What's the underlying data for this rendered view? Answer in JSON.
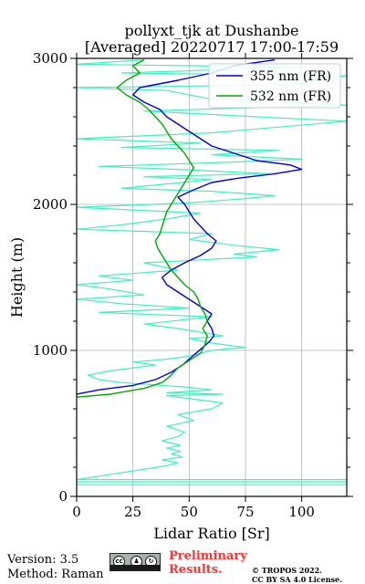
{
  "chart_data": {
    "type": "line",
    "title": "pollyxt_tjk at Dushanbe",
    "subtitle": "[Averaged] 20220717 17:00-17:59",
    "xlabel": "Lidar Ratio [Sr]",
    "ylabel": "Height (m)",
    "xlim": [
      0,
      120
    ],
    "ylim": [
      0,
      3000
    ],
    "xticks": [
      0,
      25,
      50,
      75,
      100
    ],
    "yticks": [
      0,
      1000,
      2000,
      3000
    ],
    "grid": true,
    "legend_position": "top-right",
    "series": [
      {
        "name": "",
        "color": "#40f0c0",
        "points": [
          [
            120,
            80
          ],
          [
            0,
            80
          ],
          [
            0,
            100
          ],
          [
            120,
            100
          ],
          [
            120,
            115
          ],
          [
            0,
            115
          ],
          [
            40,
            210
          ],
          [
            45,
            230
          ],
          [
            38,
            250
          ],
          [
            47,
            270
          ],
          [
            42,
            290
          ],
          [
            46,
            310
          ],
          [
            40,
            330
          ],
          [
            46,
            350
          ],
          [
            38,
            380
          ],
          [
            45,
            410
          ],
          [
            48,
            440
          ],
          [
            40,
            480
          ],
          [
            52,
            520
          ],
          [
            45,
            560
          ],
          [
            60,
            600
          ],
          [
            65,
            640
          ],
          [
            55,
            660
          ],
          [
            40,
            690
          ],
          [
            65,
            700
          ],
          [
            40,
            710
          ],
          [
            60,
            730
          ],
          [
            48,
            750
          ],
          [
            38,
            760
          ],
          [
            20,
            780
          ],
          [
            10,
            800
          ],
          [
            5,
            830
          ],
          [
            15,
            860
          ],
          [
            35,
            900
          ],
          [
            25,
            920
          ],
          [
            40,
            940
          ],
          [
            50,
            960
          ],
          [
            60,
            1000
          ],
          [
            75,
            1020
          ],
          [
            60,
            1050
          ],
          [
            50,
            1080
          ],
          [
            65,
            1100
          ],
          [
            45,
            1150
          ],
          [
            30,
            1180
          ],
          [
            60,
            1230
          ],
          [
            10,
            1260
          ],
          [
            50,
            1290
          ],
          [
            20,
            1320
          ],
          [
            0,
            1350
          ],
          [
            30,
            1380
          ],
          [
            15,
            1420
          ],
          [
            0,
            1450
          ],
          [
            25,
            1480
          ],
          [
            10,
            1510
          ],
          [
            45,
            1550
          ],
          [
            30,
            1600
          ],
          [
            55,
            1620
          ],
          [
            80,
            1640
          ],
          [
            70,
            1660
          ],
          [
            90,
            1690
          ],
          [
            70,
            1720
          ],
          [
            50,
            1760
          ],
          [
            60,
            1800
          ],
          [
            0,
            1830
          ],
          [
            20,
            1860
          ],
          [
            40,
            1900
          ],
          [
            55,
            1940
          ],
          [
            0,
            1980
          ],
          [
            50,
            2010
          ],
          [
            75,
            2040
          ],
          [
            88,
            2060
          ],
          [
            60,
            2090
          ],
          [
            20,
            2110
          ],
          [
            40,
            2140
          ],
          [
            60,
            2170
          ],
          [
            30,
            2190
          ],
          [
            85,
            2210
          ],
          [
            45,
            2240
          ],
          [
            10,
            2260
          ],
          [
            70,
            2290
          ],
          [
            100,
            2310
          ],
          [
            60,
            2340
          ],
          [
            90,
            2370
          ],
          [
            20,
            2390
          ],
          [
            55,
            2420
          ],
          [
            0,
            2450
          ],
          [
            60,
            2490
          ],
          [
            120,
            2570
          ],
          [
            80,
            2600
          ],
          [
            30,
            2640
          ],
          [
            120,
            2680
          ],
          [
            60,
            2720
          ],
          [
            40,
            2780
          ],
          [
            0,
            2800
          ],
          [
            95,
            2820
          ],
          [
            120,
            2880
          ],
          [
            20,
            2900
          ],
          [
            100,
            2940
          ],
          [
            0,
            2960
          ],
          [
            30,
            2990
          ]
        ]
      },
      {
        "name": "355 nm (FR)",
        "color": "#0000dd",
        "points": [
          [
            0,
            700
          ],
          [
            10,
            730
          ],
          [
            25,
            760
          ],
          [
            35,
            800
          ],
          [
            42,
            850
          ],
          [
            47,
            900
          ],
          [
            50,
            940
          ],
          [
            53,
            980
          ],
          [
            56,
            1020
          ],
          [
            59,
            1060
          ],
          [
            61,
            1100
          ],
          [
            60,
            1150
          ],
          [
            58,
            1200
          ],
          [
            60,
            1250
          ],
          [
            55,
            1300
          ],
          [
            50,
            1350
          ],
          [
            45,
            1400
          ],
          [
            40,
            1450
          ],
          [
            38,
            1500
          ],
          [
            42,
            1550
          ],
          [
            48,
            1600
          ],
          [
            55,
            1650
          ],
          [
            60,
            1700
          ],
          [
            62,
            1750
          ],
          [
            58,
            1800
          ],
          [
            55,
            1850
          ],
          [
            52,
            1900
          ],
          [
            50,
            1950
          ],
          [
            48,
            2000
          ],
          [
            45,
            2050
          ],
          [
            52,
            2100
          ],
          [
            60,
            2150
          ],
          [
            72,
            2180
          ],
          [
            88,
            2210
          ],
          [
            100,
            2240
          ],
          [
            95,
            2270
          ],
          [
            80,
            2300
          ],
          [
            70,
            2350
          ],
          [
            60,
            2400
          ],
          [
            55,
            2450
          ],
          [
            50,
            2500
          ],
          [
            45,
            2550
          ],
          [
            40,
            2600
          ],
          [
            37,
            2650
          ],
          [
            30,
            2700
          ],
          [
            25,
            2750
          ],
          [
            28,
            2800
          ],
          [
            45,
            2850
          ],
          [
            60,
            2900
          ],
          [
            70,
            2950
          ],
          [
            88,
            2990
          ]
        ]
      },
      {
        "name": "532 nm (FR)",
        "color": "#00aa00",
        "points": [
          [
            0,
            680
          ],
          [
            15,
            700
          ],
          [
            30,
            740
          ],
          [
            38,
            780
          ],
          [
            42,
            830
          ],
          [
            45,
            880
          ],
          [
            50,
            930
          ],
          [
            55,
            980
          ],
          [
            57,
            1040
          ],
          [
            58,
            1100
          ],
          [
            56,
            1150
          ],
          [
            58,
            1200
          ],
          [
            57,
            1250
          ],
          [
            55,
            1300
          ],
          [
            54,
            1350
          ],
          [
            52,
            1400
          ],
          [
            48,
            1450
          ],
          [
            45,
            1500
          ],
          [
            42,
            1550
          ],
          [
            40,
            1600
          ],
          [
            38,
            1650
          ],
          [
            36,
            1700
          ],
          [
            35,
            1750
          ],
          [
            37,
            1800
          ],
          [
            38,
            1850
          ],
          [
            39,
            1900
          ],
          [
            40,
            1950
          ],
          [
            42,
            2000
          ],
          [
            44,
            2050
          ],
          [
            46,
            2100
          ],
          [
            48,
            2150
          ],
          [
            50,
            2200
          ],
          [
            52,
            2250
          ],
          [
            50,
            2300
          ],
          [
            48,
            2350
          ],
          [
            45,
            2400
          ],
          [
            42,
            2450
          ],
          [
            40,
            2500
          ],
          [
            38,
            2550
          ],
          [
            35,
            2600
          ],
          [
            32,
            2650
          ],
          [
            28,
            2700
          ],
          [
            22,
            2750
          ],
          [
            18,
            2800
          ],
          [
            22,
            2850
          ],
          [
            28,
            2900
          ],
          [
            25,
            2950
          ],
          [
            30,
            2990
          ]
        ]
      }
    ]
  },
  "footer": {
    "version": "Version: 3.5",
    "method": "Method: Raman",
    "cc_icons": [
      "cc",
      "by",
      "sa"
    ],
    "preliminary_line1": "Preliminary",
    "preliminary_line2": "Results.",
    "copyright_line1": "© TROPOS 2022.",
    "copyright_line2": "CC BY SA 4.0 License."
  }
}
